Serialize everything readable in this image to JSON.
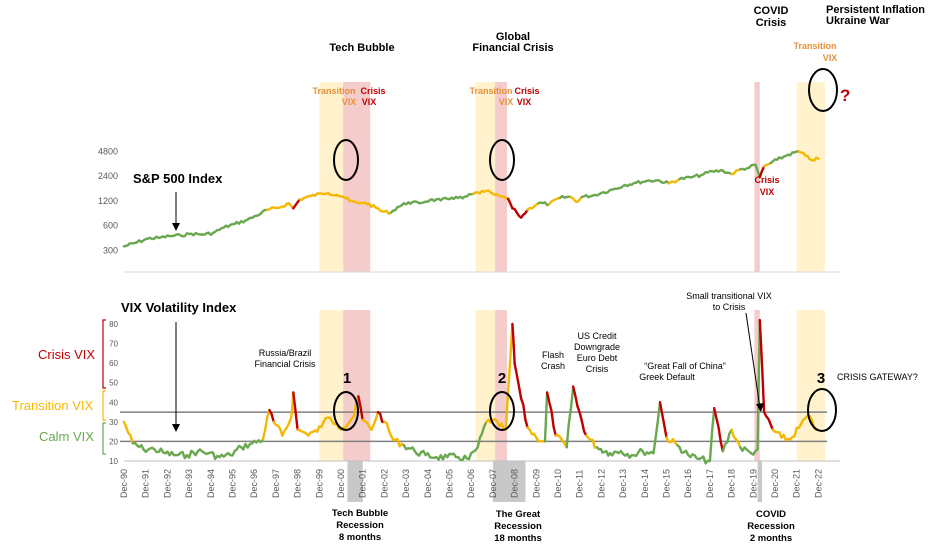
{
  "colors": {
    "calm": "#6aa84f",
    "transition": "#f5b800",
    "crisis": "#c00000",
    "transition_shade": "#fff2cc",
    "crisis_shade": "#f4cccc",
    "recession_shade": "#c8c8c8",
    "transition_text": "#e69138",
    "calm_text": "#6aa84f",
    "crisis_text": "#c00000"
  },
  "top_annotations": {
    "tech_bubble": "Tech Bubble",
    "gfc_line1": "Global",
    "gfc_line2": "Financial Crisis",
    "covid_line1": "COVID",
    "covid_line2": "Crisis",
    "inflation_line1": "Persistent Inflation",
    "inflation_line2": "Ukraine War",
    "transition": "Transition",
    "crisis": "Crisis",
    "vix": "VIX",
    "question": "?",
    "sp500": "S&P 500 Index"
  },
  "bottom_annotations": {
    "vix_title": "VIX Volatility Index",
    "crisis_vix": "Crisis VIX",
    "transition_vix": "Transition VIX",
    "calm_vix": "Calm VIX",
    "russia1": "Russia/Brazil",
    "russia2": "Financial Crisis",
    "flash1": "Flash",
    "flash2": "Crash",
    "us1": "US Credit",
    "us2": "Downgrade",
    "us3": "Euro Debt",
    "us4": "Crisis",
    "china1": "“Great Fall of China”",
    "china2": "Greek Default",
    "small1": "Small transitional VIX",
    "small2": "to Crisis",
    "gateway": "CRISIS GATEWAY?",
    "n1": "1",
    "n2": "2",
    "n3": "3",
    "rec_tech1": "Tech Bubble",
    "rec_tech2": "Recession",
    "rec_tech3": "8 months",
    "rec_gr1": "The Great",
    "rec_gr2": "Recession",
    "rec_gr3": "18 months",
    "rec_cv1": "COVID",
    "rec_cv2": "Recession",
    "rec_cv3": "2 months"
  },
  "chart_data": [
    {
      "type": "line",
      "series_label": "S&P 500 Index",
      "y_scale": "log",
      "y_ticks": [
        "300",
        "600",
        "1200",
        "2400",
        "4800"
      ],
      "x": [
        1990.9,
        1991.5,
        1992.0,
        1992.5,
        1993.0,
        1993.5,
        1994.0,
        1994.5,
        1995.0,
        1995.5,
        1996.0,
        1996.5,
        1997.0,
        1997.5,
        1998.0,
        1998.5,
        1998.7,
        1999.0,
        1999.5,
        2000.0,
        2000.3,
        2000.7,
        2001.0,
        2001.3,
        2001.7,
        2002.0,
        2002.5,
        2002.8,
        2003.2,
        2003.5,
        2004.0,
        2004.5,
        2005.0,
        2005.5,
        2006.0,
        2006.5,
        2007.0,
        2007.5,
        2007.8,
        2008.0,
        2008.3,
        2008.6,
        2008.8,
        2009.0,
        2009.2,
        2009.5,
        2010.0,
        2010.5,
        2011.0,
        2011.5,
        2011.8,
        2012.0,
        2012.5,
        2013.0,
        2013.5,
        2014.0,
        2014.5,
        2015.0,
        2015.5,
        2016.0,
        2016.5,
        2017.0,
        2017.5,
        2018.0,
        2018.5,
        2018.9,
        2019.3,
        2019.7,
        2020.0,
        2020.2,
        2020.4,
        2020.7,
        2021.0,
        2021.5,
        2022.0,
        2022.3,
        2022.6,
        2022.9
      ],
      "values": [
        330,
        370,
        410,
        420,
        440,
        450,
        470,
        460,
        480,
        560,
        620,
        680,
        780,
        920,
        970,
        1100,
        960,
        1230,
        1350,
        1450,
        1480,
        1400,
        1330,
        1180,
        1100,
        1130,
        980,
        880,
        850,
        990,
        1130,
        1110,
        1210,
        1200,
        1290,
        1270,
        1440,
        1530,
        1500,
        1400,
        1320,
        1250,
        960,
        850,
        740,
        920,
        1110,
        1080,
        1290,
        1320,
        1150,
        1320,
        1370,
        1500,
        1650,
        1840,
        1960,
        2070,
        2100,
        1930,
        2170,
        2280,
        2430,
        2700,
        2750,
        2500,
        2850,
        2980,
        3240,
        2300,
        3100,
        3400,
        3750,
        4300,
        4700,
        4200,
        3700,
        3850
      ],
      "regime": [
        "calm",
        "calm",
        "calm",
        "calm",
        "calm",
        "calm",
        "calm",
        "calm",
        "calm",
        "calm",
        "calm",
        "calm",
        "calm",
        "transition",
        "transition",
        "transition",
        "crisis",
        "transition",
        "transition",
        "transition",
        "transition",
        "transition",
        "transition",
        "transition",
        "transition",
        "transition",
        "transition",
        "transition",
        "calm",
        "calm",
        "calm",
        "calm",
        "calm",
        "calm",
        "calm",
        "calm",
        "transition",
        "transition",
        "transition",
        "transition",
        "transition",
        "crisis",
        "crisis",
        "crisis",
        "crisis",
        "transition",
        "calm",
        "transition",
        "calm",
        "transition",
        "transition",
        "calm",
        "calm",
        "calm",
        "calm",
        "calm",
        "calm",
        "calm",
        "calm",
        "transition",
        "calm",
        "calm",
        "calm",
        "calm",
        "calm",
        "transition",
        "calm",
        "calm",
        "calm",
        "crisis",
        "transition",
        "calm",
        "calm",
        "calm",
        "transition",
        "transition",
        "transition",
        "transition"
      ]
    },
    {
      "type": "line",
      "series_label": "VIX Volatility Index",
      "y_ticks": [
        "10",
        "20",
        "30",
        "40",
        "50",
        "60",
        "70",
        "80"
      ],
      "ylim": [
        10,
        80
      ],
      "x_tick_labels": [
        "Dec-90",
        "Dec-91",
        "Dec-92",
        "Dec-93",
        "Dec-94",
        "Dec-95",
        "Dec-96",
        "Dec-97",
        "Dec-98",
        "Dec-99",
        "Dec-00",
        "Dec-01",
        "Dec-02",
        "Dec-03",
        "Dec-04",
        "Dec-05",
        "Dec-06",
        "Dec-07",
        "Dec-08",
        "Dec-09",
        "Dec-10",
        "Dec-11",
        "Dec-12",
        "Dec-13",
        "Dec-14",
        "Dec-15",
        "Dec-16",
        "Dec-17",
        "Dec-18",
        "Dec-19",
        "Dec-20",
        "Dec-21",
        "Dec-22"
      ],
      "thresholds": [
        20,
        35
      ],
      "x": [
        1990.9,
        1991.3,
        1991.8,
        1992.3,
        1992.8,
        1993.3,
        1993.8,
        1994.3,
        1994.8,
        1995.3,
        1995.8,
        1996.3,
        1996.8,
        1997.3,
        1997.6,
        1997.8,
        1998.2,
        1998.6,
        1998.7,
        1998.9,
        1999.3,
        1999.8,
        2000.1,
        2000.4,
        2000.7,
        2001.0,
        2001.5,
        2001.7,
        2001.9,
        2002.3,
        2002.6,
        2002.9,
        2003.3,
        2003.8,
        2004.3,
        2004.8,
        2005.3,
        2005.8,
        2006.3,
        2006.8,
        2007.2,
        2007.6,
        2007.9,
        2008.2,
        2008.5,
        2008.8,
        2008.9,
        2009.2,
        2009.5,
        2009.9,
        2010.3,
        2010.4,
        2010.8,
        2011.3,
        2011.6,
        2011.8,
        2012.2,
        2012.7,
        2013.3,
        2013.8,
        2014.3,
        2014.8,
        2015.3,
        2015.6,
        2015.9,
        2016.4,
        2016.9,
        2017.4,
        2017.9,
        2018.1,
        2018.5,
        2018.9,
        2019.3,
        2019.8,
        2020.1,
        2020.2,
        2020.4,
        2020.8,
        2021.2,
        2021.6,
        2022.0,
        2022.4,
        2022.8
      ],
      "values": [
        30,
        19,
        16,
        16,
        14,
        13,
        13,
        15,
        14,
        12,
        13,
        17,
        19,
        21,
        36,
        30,
        23,
        32,
        45,
        26,
        24,
        25,
        30,
        32,
        29,
        27,
        33,
        43,
        31,
        26,
        35,
        30,
        21,
        18,
        15,
        13,
        12,
        12,
        12,
        11,
        17,
        30,
        31,
        28,
        26,
        80,
        60,
        42,
        27,
        22,
        20,
        45,
        23,
        17,
        48,
        38,
        23,
        17,
        14,
        15,
        13,
        15,
        14,
        40,
        22,
        18,
        13,
        11,
        10,
        37,
        15,
        26,
        17,
        14,
        16,
        82,
        35,
        26,
        22,
        21,
        27,
        33,
        26
      ],
      "regime": [
        "transition",
        "calm",
        "calm",
        "calm",
        "calm",
        "calm",
        "calm",
        "calm",
        "calm",
        "calm",
        "calm",
        "calm",
        "calm",
        "transition",
        "crisis",
        "transition",
        "transition",
        "transition",
        "crisis",
        "transition",
        "transition",
        "transition",
        "transition",
        "transition",
        "transition",
        "transition",
        "transition",
        "crisis",
        "transition",
        "transition",
        "crisis",
        "transition",
        "transition",
        "calm",
        "calm",
        "calm",
        "calm",
        "calm",
        "calm",
        "calm",
        "calm",
        "transition",
        "transition",
        "transition",
        "transition",
        "crisis",
        "crisis",
        "crisis",
        "transition",
        "transition",
        "calm",
        "crisis",
        "transition",
        "calm",
        "crisis",
        "crisis",
        "transition",
        "calm",
        "calm",
        "calm",
        "calm",
        "calm",
        "calm",
        "crisis",
        "transition",
        "calm",
        "calm",
        "calm",
        "calm",
        "crisis",
        "calm",
        "transition",
        "calm",
        "calm",
        "calm",
        "crisis",
        "crisis",
        "transition",
        "transition",
        "transition",
        "transition",
        "transition",
        "transition"
      ]
    }
  ]
}
